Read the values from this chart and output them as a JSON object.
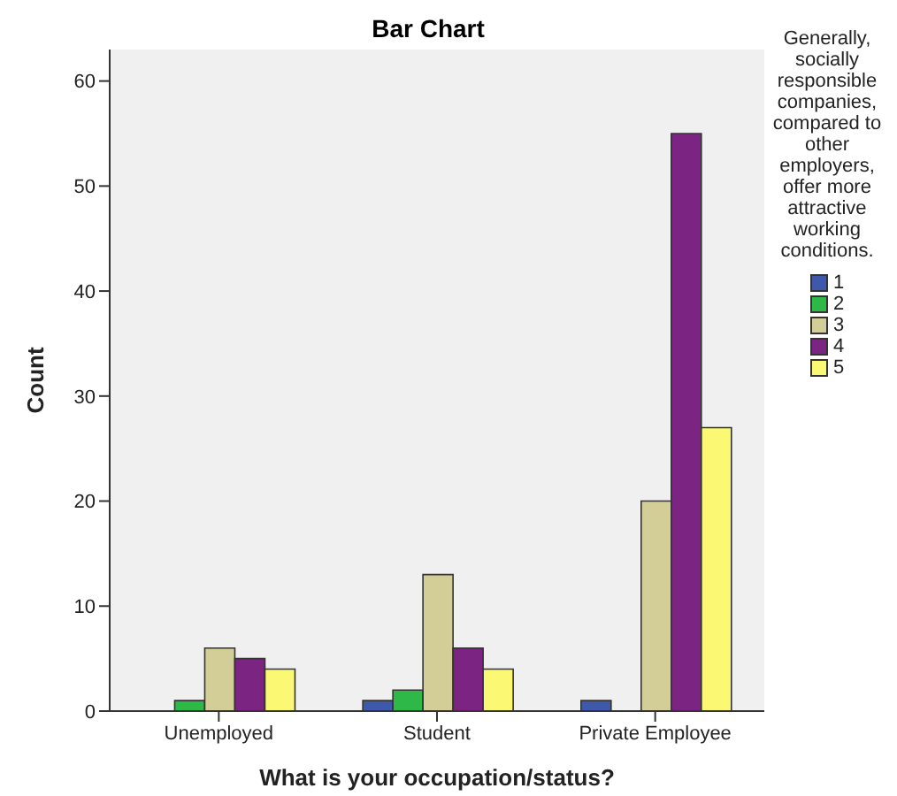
{
  "chart_data": {
    "type": "bar",
    "title": "Bar Chart",
    "xlabel": "What is your occupation/status?",
    "ylabel": "Count",
    "legend_title": "Generally, socially responsible companies, compared to other employers, offer more attractive working conditions.",
    "categories": [
      "Unemployed",
      "Student",
      "Private Employee"
    ],
    "series": [
      {
        "name": "1",
        "color": "#3e58ac",
        "values": [
          null,
          1,
          1
        ]
      },
      {
        "name": "2",
        "color": "#2eb848",
        "values": [
          1,
          2,
          null
        ]
      },
      {
        "name": "3",
        "color": "#d3ce97",
        "values": [
          6,
          13,
          20
        ]
      },
      {
        "name": "4",
        "color": "#7b2481",
        "values": [
          5,
          6,
          55
        ]
      },
      {
        "name": "5",
        "color": "#fbf873",
        "values": [
          4,
          4,
          27
        ]
      }
    ],
    "ylim": [
      0,
      63
    ],
    "yticks": [
      0,
      10,
      20,
      30,
      40,
      50,
      60
    ],
    "grid": false,
    "legend": "right"
  }
}
